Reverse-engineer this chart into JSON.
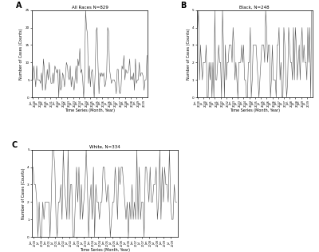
{
  "title_A": "All Races N=829",
  "title_B": "Black, N=248",
  "title_C": "White, N=334",
  "xlabel": "Time Series (Month, Year)",
  "ylabel": "Number of Cases (Counts)",
  "background_color": "#ffffff",
  "line_color": "#555555",
  "n_months": 120,
  "ylim_A": [
    0,
    25
  ],
  "ylim_B": [
    0,
    5
  ],
  "ylim_C": [
    0,
    5
  ],
  "yticks_A": [
    0,
    5,
    10,
    15,
    20,
    25
  ],
  "yticks_B": [
    0,
    1,
    2,
    3,
    4,
    5
  ],
  "yticks_C": [
    0,
    1,
    2,
    3,
    4,
    5
  ],
  "line_width": 0.4,
  "title_fontsize": 4.0,
  "tick_fontsize": 3.0,
  "label_fontsize": 3.5,
  "panel_fontsize": 7.0
}
